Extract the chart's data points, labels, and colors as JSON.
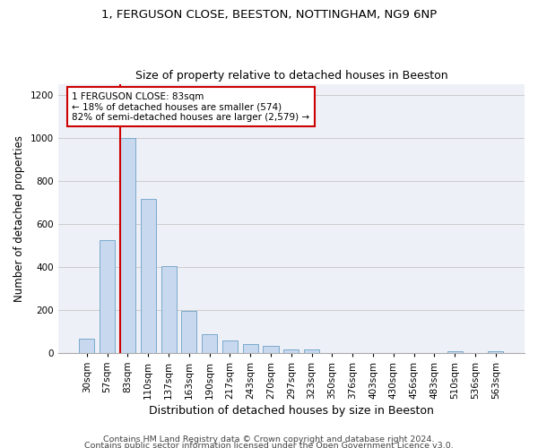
{
  "title1": "1, FERGUSON CLOSE, BEESTON, NOTTINGHAM, NG9 6NP",
  "title2": "Size of property relative to detached houses in Beeston",
  "xlabel": "Distribution of detached houses by size in Beeston",
  "ylabel": "Number of detached properties",
  "footer1": "Contains HM Land Registry data © Crown copyright and database right 2024.",
  "footer2": "Contains public sector information licensed under the Open Government Licence v3.0.",
  "categories": [
    "30sqm",
    "57sqm",
    "83sqm",
    "110sqm",
    "137sqm",
    "163sqm",
    "190sqm",
    "217sqm",
    "243sqm",
    "270sqm",
    "297sqm",
    "323sqm",
    "350sqm",
    "376sqm",
    "403sqm",
    "430sqm",
    "456sqm",
    "483sqm",
    "510sqm",
    "536sqm",
    "563sqm"
  ],
  "values": [
    65,
    525,
    1000,
    715,
    405,
    197,
    88,
    58,
    40,
    32,
    18,
    18,
    0,
    0,
    0,
    0,
    0,
    0,
    10,
    0,
    10
  ],
  "bar_color": "#c8d8ee",
  "bar_edge_color": "#7aaacc",
  "property_line_index": 2,
  "annotation_text": "1 FERGUSON CLOSE: 83sqm\n← 18% of detached houses are smaller (574)\n82% of semi-detached houses are larger (2,579) →",
  "annotation_box_color": "white",
  "annotation_box_edge_color": "#cc0000",
  "line_color": "#cc0000",
  "ylim": [
    0,
    1250
  ],
  "yticks": [
    0,
    200,
    400,
    600,
    800,
    1000,
    1200
  ],
  "grid_color": "#cccccc",
  "bg_color": "#eef0f8",
  "title1_fontsize": 9.5,
  "title2_fontsize": 9,
  "tick_fontsize": 7.5,
  "ylabel_fontsize": 8.5,
  "xlabel_fontsize": 9,
  "annotation_fontsize": 7.5,
  "footer_fontsize": 6.8,
  "bar_width": 0.75
}
